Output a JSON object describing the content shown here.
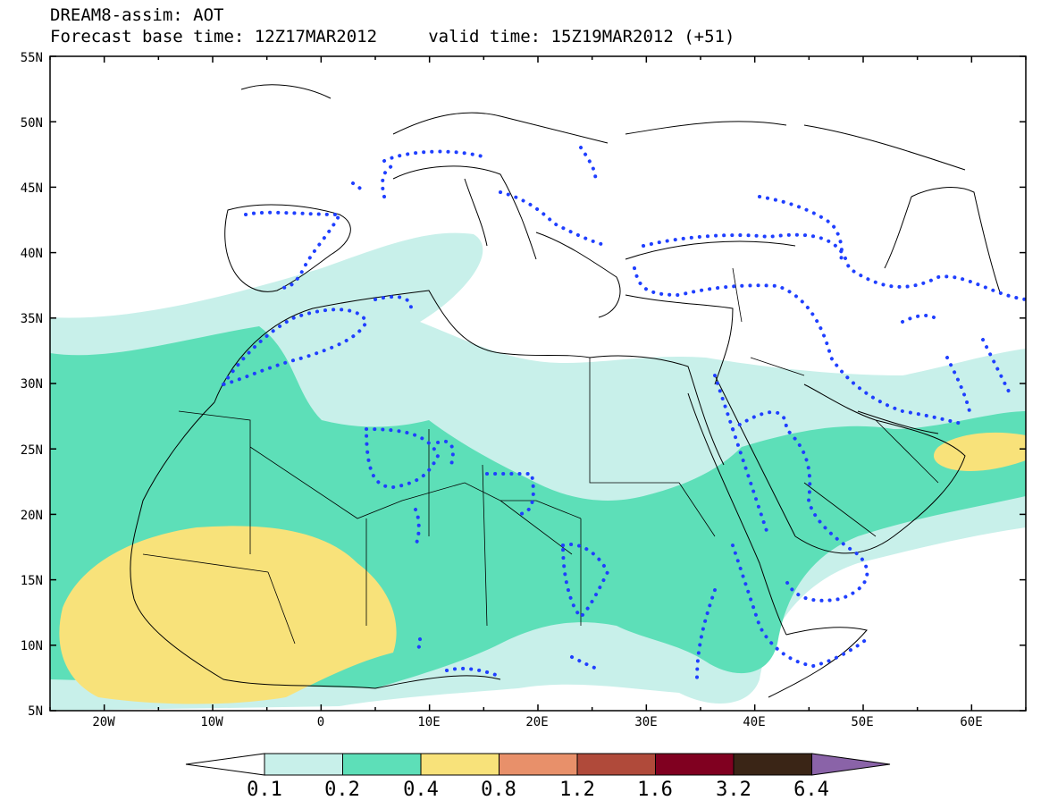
{
  "title": {
    "line1": "DREAM8-assim: AOT",
    "line2": "Forecast base time: 12Z17MAR2012     valid time: 15Z19MAR2012 (+51)"
  },
  "map": {
    "projection": "lat-lon",
    "lat_range": [
      5,
      55
    ],
    "lon_range": [
      -25,
      65
    ],
    "lat_ticks": [
      "55N",
      "50N",
      "45N",
      "40N",
      "35N",
      "30N",
      "25N",
      "20N",
      "15N",
      "10N",
      "5N"
    ],
    "lon_ticks": [
      "20W",
      "10W",
      "0",
      "10E",
      "20E",
      "30E",
      "40E",
      "50E",
      "60E"
    ],
    "coastlines": true,
    "country_borders": true,
    "dotted_contour_color": "#1f3fff"
  },
  "colorbar": {
    "labels": [
      "0.1",
      "0.2",
      "0.4",
      "0.8",
      "1.2",
      "1.6",
      "3.2",
      "6.4"
    ],
    "colors": [
      "#c8f0ea",
      "#5ddfb8",
      "#f8e27a",
      "#e8906a",
      "#b04a3a",
      "#800020",
      "#3a2516",
      "#8a63a8"
    ],
    "extend": "both"
  }
}
